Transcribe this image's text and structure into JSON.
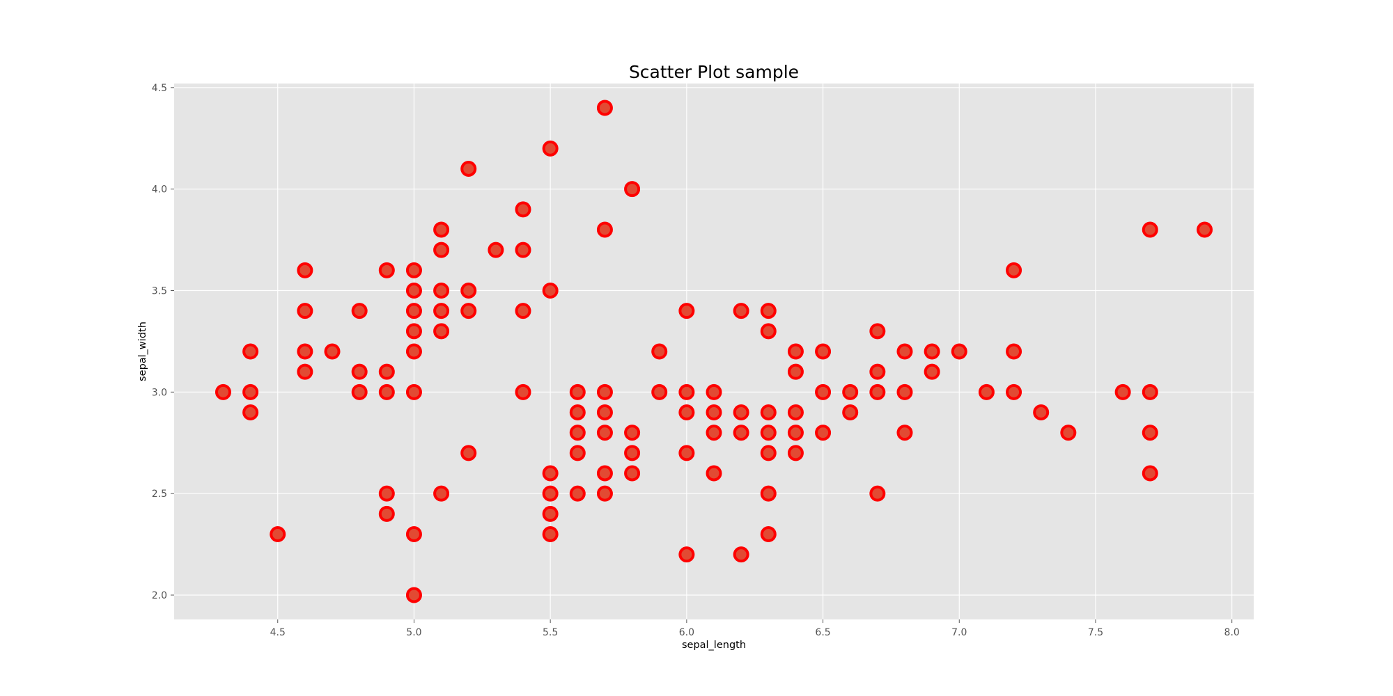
{
  "chart_data": {
    "type": "scatter",
    "title": "Scatter Plot sample",
    "xlabel": "sepal_length",
    "ylabel": "sepal_width",
    "xlim": [
      4.12,
      8.08
    ],
    "ylim": [
      1.88,
      4.52
    ],
    "xticks": [
      "4.5",
      "5.0",
      "5.5",
      "6.0",
      "6.5",
      "7.0",
      "7.5",
      "8.0"
    ],
    "yticks": [
      "2.0",
      "2.5",
      "3.0",
      "3.5",
      "4.0",
      "4.5"
    ],
    "grid": true,
    "marker_face_color": "#e24a33",
    "marker_edge_color": "#ff0000",
    "plot_background": "#e5e5e5",
    "grid_color": "#ffffff",
    "points": [
      [
        4.3,
        3.0
      ],
      [
        4.4,
        3.2
      ],
      [
        4.4,
        3.0
      ],
      [
        4.4,
        2.9
      ],
      [
        4.5,
        2.3
      ],
      [
        4.6,
        3.6
      ],
      [
        4.6,
        3.4
      ],
      [
        4.6,
        3.2
      ],
      [
        4.6,
        3.1
      ],
      [
        4.7,
        3.2
      ],
      [
        4.8,
        3.4
      ],
      [
        4.8,
        3.1
      ],
      [
        4.8,
        3.0
      ],
      [
        4.9,
        3.6
      ],
      [
        4.9,
        3.1
      ],
      [
        4.9,
        3.0
      ],
      [
        4.9,
        2.5
      ],
      [
        4.9,
        2.4
      ],
      [
        5.0,
        3.6
      ],
      [
        5.0,
        3.5
      ],
      [
        5.0,
        3.4
      ],
      [
        5.0,
        3.3
      ],
      [
        5.0,
        3.2
      ],
      [
        5.0,
        3.0
      ],
      [
        5.0,
        2.3
      ],
      [
        5.0,
        2.0
      ],
      [
        5.1,
        3.8
      ],
      [
        5.1,
        3.7
      ],
      [
        5.1,
        3.5
      ],
      [
        5.1,
        3.4
      ],
      [
        5.1,
        3.3
      ],
      [
        5.1,
        2.5
      ],
      [
        5.2,
        4.1
      ],
      [
        5.2,
        3.5
      ],
      [
        5.2,
        3.4
      ],
      [
        5.2,
        2.7
      ],
      [
        5.3,
        3.7
      ],
      [
        5.4,
        3.9
      ],
      [
        5.4,
        3.7
      ],
      [
        5.4,
        3.4
      ],
      [
        5.4,
        3.0
      ],
      [
        5.5,
        4.2
      ],
      [
        5.5,
        3.5
      ],
      [
        5.5,
        2.6
      ],
      [
        5.5,
        2.5
      ],
      [
        5.5,
        2.4
      ],
      [
        5.5,
        2.3
      ],
      [
        5.6,
        3.0
      ],
      [
        5.6,
        2.9
      ],
      [
        5.6,
        2.8
      ],
      [
        5.6,
        2.7
      ],
      [
        5.6,
        2.5
      ],
      [
        5.7,
        4.4
      ],
      [
        5.7,
        3.8
      ],
      [
        5.7,
        3.0
      ],
      [
        5.7,
        2.9
      ],
      [
        5.7,
        2.8
      ],
      [
        5.7,
        2.6
      ],
      [
        5.7,
        2.5
      ],
      [
        5.8,
        4.0
      ],
      [
        5.8,
        2.8
      ],
      [
        5.8,
        2.7
      ],
      [
        5.8,
        2.6
      ],
      [
        5.9,
        3.2
      ],
      [
        5.9,
        3.0
      ],
      [
        6.0,
        3.4
      ],
      [
        6.0,
        3.0
      ],
      [
        6.0,
        2.9
      ],
      [
        6.0,
        2.7
      ],
      [
        6.0,
        2.2
      ],
      [
        6.1,
        3.0
      ],
      [
        6.1,
        2.9
      ],
      [
        6.1,
        2.8
      ],
      [
        6.1,
        2.6
      ],
      [
        6.2,
        3.4
      ],
      [
        6.2,
        2.9
      ],
      [
        6.2,
        2.8
      ],
      [
        6.2,
        2.2
      ],
      [
        6.3,
        3.4
      ],
      [
        6.3,
        3.3
      ],
      [
        6.3,
        2.9
      ],
      [
        6.3,
        2.8
      ],
      [
        6.3,
        2.7
      ],
      [
        6.3,
        2.5
      ],
      [
        6.3,
        2.3
      ],
      [
        6.4,
        3.2
      ],
      [
        6.4,
        3.1
      ],
      [
        6.4,
        2.9
      ],
      [
        6.4,
        2.8
      ],
      [
        6.4,
        2.7
      ],
      [
        6.5,
        3.2
      ],
      [
        6.5,
        3.0
      ],
      [
        6.5,
        2.8
      ],
      [
        6.6,
        3.0
      ],
      [
        6.6,
        2.9
      ],
      [
        6.7,
        3.3
      ],
      [
        6.7,
        3.1
      ],
      [
        6.7,
        3.0
      ],
      [
        6.7,
        2.5
      ],
      [
        6.8,
        3.2
      ],
      [
        6.8,
        3.0
      ],
      [
        6.8,
        2.8
      ],
      [
        6.9,
        3.2
      ],
      [
        6.9,
        3.1
      ],
      [
        7.0,
        3.2
      ],
      [
        7.1,
        3.0
      ],
      [
        7.2,
        3.6
      ],
      [
        7.2,
        3.2
      ],
      [
        7.2,
        3.0
      ],
      [
        7.3,
        2.9
      ],
      [
        7.4,
        2.8
      ],
      [
        7.6,
        3.0
      ],
      [
        7.7,
        3.8
      ],
      [
        7.7,
        3.0
      ],
      [
        7.7,
        2.8
      ],
      [
        7.7,
        2.6
      ],
      [
        7.9,
        3.8
      ]
    ]
  }
}
